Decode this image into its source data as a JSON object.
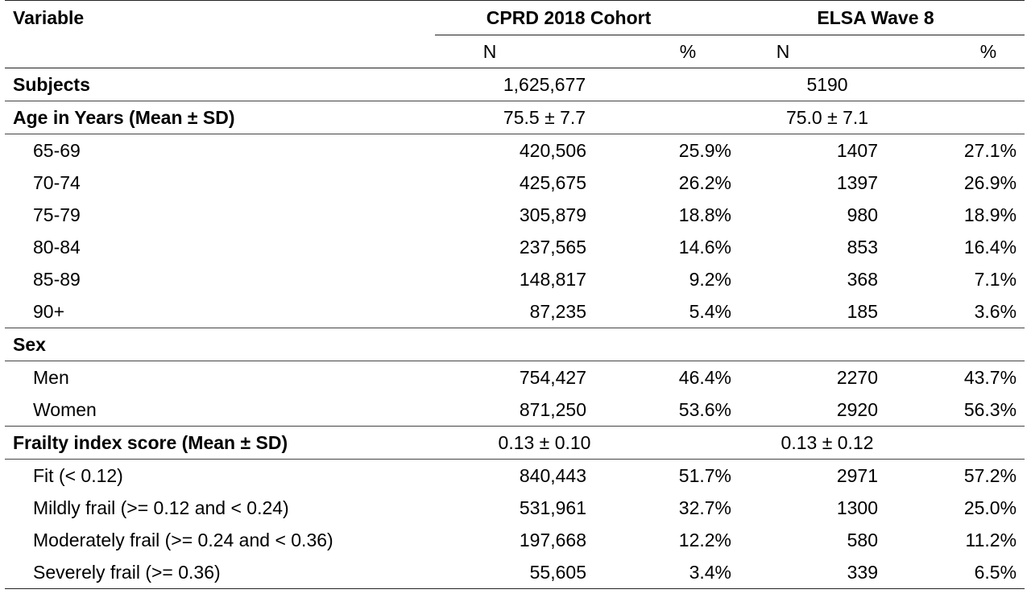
{
  "header": {
    "variable": "Variable",
    "group1": "CPRD 2018 Cohort",
    "group2": "ELSA Wave 8",
    "n": "N",
    "pct": "%"
  },
  "subjects": {
    "label": "Subjects",
    "cprd": "1,625,677",
    "elsa": "5190"
  },
  "age": {
    "label": "Age in Years (Mean ± SD)",
    "cprd": "75.5 ± 7.7",
    "elsa": "75.0 ± 7.1",
    "rows": [
      {
        "label": "65-69",
        "cprd_n": "420,506",
        "cprd_pct": "25.9%",
        "elsa_n": "1407",
        "elsa_pct": "27.1%"
      },
      {
        "label": "70-74",
        "cprd_n": "425,675",
        "cprd_pct": "26.2%",
        "elsa_n": "1397",
        "elsa_pct": "26.9%"
      },
      {
        "label": "75-79",
        "cprd_n": "305,879",
        "cprd_pct": "18.8%",
        "elsa_n": "980",
        "elsa_pct": "18.9%"
      },
      {
        "label": "80-84",
        "cprd_n": "237,565",
        "cprd_pct": "14.6%",
        "elsa_n": "853",
        "elsa_pct": "16.4%"
      },
      {
        "label": "85-89",
        "cprd_n": "148,817",
        "cprd_pct": "9.2%",
        "elsa_n": "368",
        "elsa_pct": "7.1%"
      },
      {
        "label": "90+",
        "cprd_n": "87,235",
        "cprd_pct": "5.4%",
        "elsa_n": "185",
        "elsa_pct": "3.6%"
      }
    ]
  },
  "sex": {
    "label": "Sex",
    "rows": [
      {
        "label": "Men",
        "cprd_n": "754,427",
        "cprd_pct": "46.4%",
        "elsa_n": "2270",
        "elsa_pct": "43.7%"
      },
      {
        "label": "Women",
        "cprd_n": "871,250",
        "cprd_pct": "53.6%",
        "elsa_n": "2920",
        "elsa_pct": "56.3%"
      }
    ]
  },
  "frailty": {
    "label": "Frailty index score (Mean ± SD)",
    "cprd": "0.13 ± 0.10",
    "elsa": "0.13 ± 0.12",
    "rows": [
      {
        "label": "Fit (< 0.12)",
        "cprd_n": "840,443",
        "cprd_pct": "51.7%",
        "elsa_n": "2971",
        "elsa_pct": "57.2%"
      },
      {
        "label": "Mildly frail (>= 0.12 and < 0.24)",
        "cprd_n": "531,961",
        "cprd_pct": "32.7%",
        "elsa_n": "1300",
        "elsa_pct": "25.0%"
      },
      {
        "label": "Moderately frail (>= 0.24 and < 0.36)",
        "cprd_n": "197,668",
        "cprd_pct": "12.2%",
        "elsa_n": "580",
        "elsa_pct": "11.2%"
      },
      {
        "label": "Severely frail (>= 0.36)",
        "cprd_n": "55,605",
        "cprd_pct": "3.4%",
        "elsa_n": "339",
        "elsa_pct": "6.5%"
      }
    ]
  }
}
